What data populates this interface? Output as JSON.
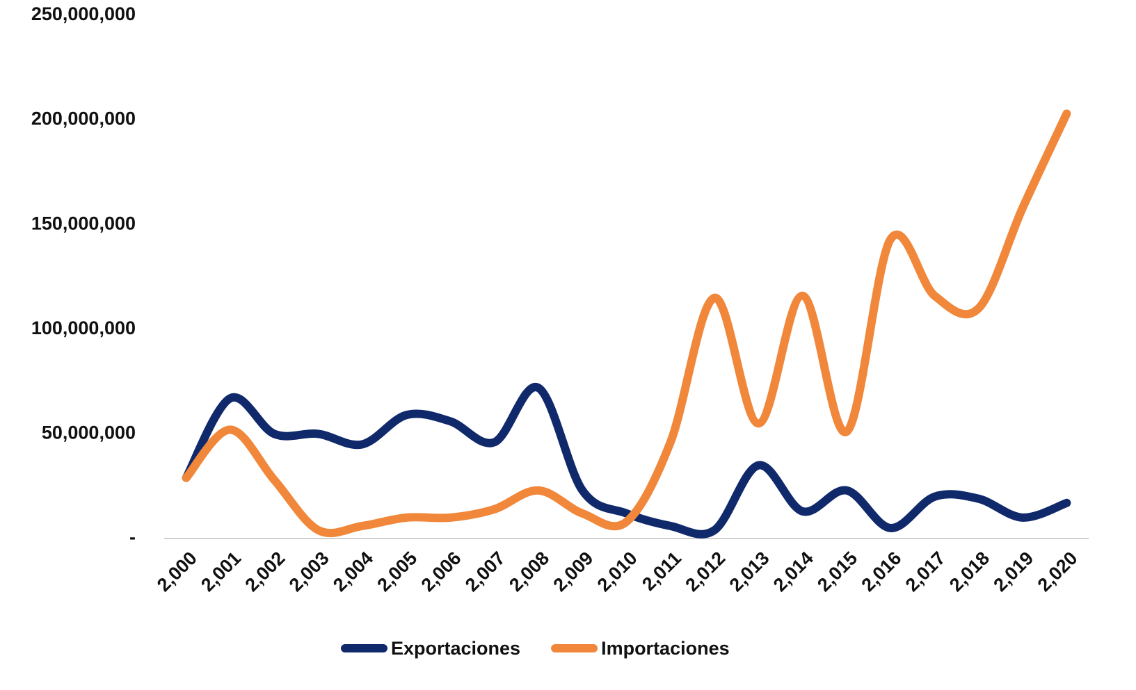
{
  "chart_data": {
    "type": "line",
    "categories": [
      "2,000",
      "2,001",
      "2,002",
      "2,003",
      "2,004",
      "2,005",
      "2,006",
      "2,007",
      "2,008",
      "2,009",
      "2,010",
      "2,011",
      "2,012",
      "2,013",
      "2,014",
      "2,015",
      "2,016",
      "2,017",
      "2,018",
      "2,019",
      "2,020"
    ],
    "series": [
      {
        "name": "Exportaciones",
        "color": "#10296b",
        "values": [
          29000000,
          67000000,
          50000000,
          50000000,
          45000000,
          59000000,
          56000000,
          46000000,
          72000000,
          23000000,
          12000000,
          6000000,
          4000000,
          35000000,
          13000000,
          23000000,
          5000000,
          20000000,
          19000000,
          10000000,
          17000000
        ]
      },
      {
        "name": "Importaciones",
        "color": "#f0873a",
        "values": [
          29000000,
          52000000,
          28000000,
          4000000,
          6000000,
          10000000,
          10000000,
          14000000,
          23000000,
          12000000,
          8000000,
          46000000,
          115000000,
          55000000,
          116000000,
          51000000,
          143000000,
          116000000,
          110000000,
          158000000,
          203000000
        ]
      }
    ],
    "ylim": [
      0,
      250000000
    ],
    "yticks": [
      {
        "value": 0,
        "label": "-"
      },
      {
        "value": 50000000,
        "label": "50,000,000"
      },
      {
        "value": 100000000,
        "label": "100,000,000"
      },
      {
        "value": 150000000,
        "label": "150,000,000"
      },
      {
        "value": 200000000,
        "label": "200,000,000"
      },
      {
        "value": 250000000,
        "label": "250,000,000"
      }
    ],
    "smooth": true,
    "legend": "bottom"
  }
}
